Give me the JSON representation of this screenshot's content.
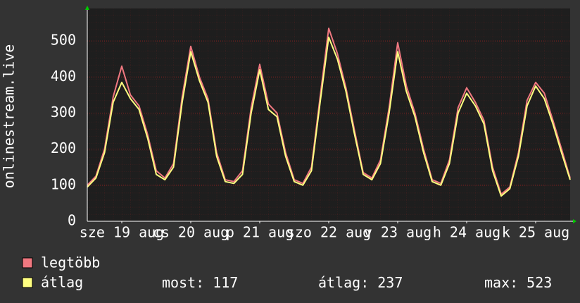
{
  "chart_data": {
    "type": "line",
    "y_label": "onlinestream.live",
    "xlim": [
      0,
      168
    ],
    "xticks": [
      {
        "value": 12,
        "label": "sze 19 aug"
      },
      {
        "value": 36,
        "label": "cs 20 aug"
      },
      {
        "value": 60,
        "label": "p 21 aug"
      },
      {
        "value": 84,
        "label": "szo 22 aug"
      },
      {
        "value": 108,
        "label": "v 23 aug"
      },
      {
        "value": 132,
        "label": "h 24 aug"
      },
      {
        "value": 156,
        "label": "k 25 aug"
      }
    ],
    "ylim": [
      0,
      590
    ],
    "yticks": [
      0,
      100,
      200,
      300,
      400,
      500
    ],
    "grid": true,
    "x": [
      0,
      3,
      6,
      9,
      12,
      15,
      18,
      21,
      24,
      27,
      30,
      33,
      36,
      39,
      42,
      45,
      48,
      51,
      54,
      57,
      60,
      63,
      66,
      69,
      72,
      75,
      78,
      81,
      84,
      87,
      90,
      93,
      96,
      99,
      102,
      105,
      108,
      111,
      114,
      117,
      120,
      123,
      126,
      129,
      132,
      135,
      138,
      141,
      144,
      147,
      150,
      153,
      156,
      159,
      162,
      165,
      168
    ],
    "series": [
      {
        "name": "legtöbb",
        "color": "#f07880",
        "values": [
          100,
          125,
          200,
          345,
          430,
          350,
          320,
          240,
          140,
          120,
          160,
          345,
          485,
          400,
          340,
          190,
          115,
          110,
          140,
          315,
          435,
          325,
          300,
          190,
          115,
          105,
          150,
          345,
          535,
          465,
          370,
          250,
          135,
          120,
          170,
          315,
          495,
          375,
          300,
          200,
          115,
          105,
          170,
          315,
          370,
          330,
          280,
          150,
          75,
          95,
          190,
          335,
          385,
          355,
          280,
          200,
          120
        ]
      },
      {
        "name": "átlag",
        "color": "#ffff80",
        "values": [
          95,
          120,
          190,
          330,
          385,
          340,
          310,
          230,
          130,
          115,
          150,
          330,
          470,
          390,
          330,
          180,
          110,
          105,
          130,
          300,
          420,
          310,
          290,
          180,
          110,
          100,
          140,
          330,
          510,
          450,
          360,
          240,
          130,
          115,
          160,
          300,
          470,
          360,
          290,
          190,
          110,
          100,
          160,
          300,
          355,
          320,
          270,
          140,
          70,
          90,
          180,
          320,
          375,
          340,
          270,
          190,
          115
        ]
      }
    ],
    "stats": [
      {
        "label": "most:",
        "value": 117
      },
      {
        "label": "átlag:",
        "value": 237
      },
      {
        "label": "max:",
        "value": 523
      }
    ]
  }
}
